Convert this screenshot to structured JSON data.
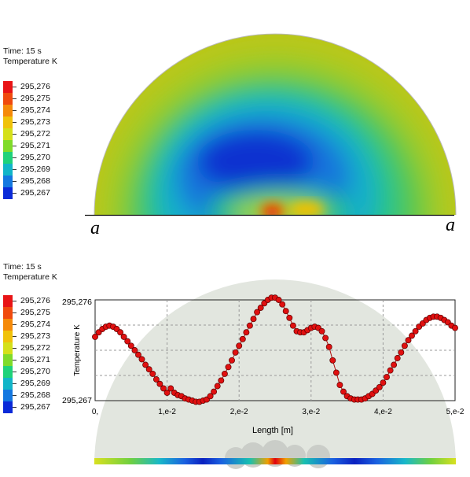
{
  "top_panel": {
    "time_label": "Time:",
    "time_value": "15 s",
    "quantity_label": "Temperature K",
    "legend_values": [
      "295,276",
      "295,275",
      "295,274",
      "295,273",
      "295,272",
      "295,271",
      "295,270",
      "295,269",
      "295,268",
      "295,267"
    ],
    "legend_colors": [
      "#e81416",
      "#f04a0e",
      "#f58a0a",
      "#f0c20a",
      "#d5e01a",
      "#7fdb2a",
      "#1fd27a",
      "#12b5c8",
      "#1478e0",
      "#0a2ad8"
    ],
    "marker_left": "a",
    "marker_right": "a"
  },
  "bottom_panel": {
    "time_label": "Time:",
    "time_value": "15 s",
    "quantity_label": "Temperature K",
    "legend_values": [
      "295,276",
      "295,275",
      "295,274",
      "295,273",
      "295,272",
      "295,271",
      "295,270",
      "295,269",
      "295,268",
      "295,267"
    ],
    "legend_colors": [
      "#e81416",
      "#f04a0e",
      "#f58a0a",
      "#f0c20a",
      "#d5e01a",
      "#7fdb2a",
      "#1fd27a",
      "#12b5c8",
      "#1478e0",
      "#0a2ad8"
    ]
  },
  "chart_data": {
    "type": "scatter",
    "ylabel": "Temperature K",
    "xlabel": "Length [m]",
    "xlim": [
      0,
      0.05
    ],
    "ylim": [
      295.267,
      295.276
    ],
    "x_tick_labels": [
      "0,",
      "1,e-2",
      "2,e-2",
      "3,e-2",
      "4,e-2",
      "5,e-2"
    ],
    "y_tick_labels": [
      "295,276",
      "295,267"
    ],
    "grid": true,
    "marker_color": "#e01010",
    "series": [
      {
        "x": [
          0.0,
          0.0005,
          0.001,
          0.0015,
          0.002,
          0.0025,
          0.003,
          0.0035,
          0.004,
          0.0045,
          0.005,
          0.0055,
          0.006,
          0.0065,
          0.007,
          0.0075,
          0.008,
          0.0085,
          0.009,
          0.0095,
          0.01,
          0.0105,
          0.011,
          0.0115,
          0.012,
          0.0125,
          0.013,
          0.0135,
          0.014,
          0.0145,
          0.015,
          0.0155,
          0.016,
          0.0165,
          0.017,
          0.0175,
          0.018,
          0.0185,
          0.019,
          0.0195,
          0.02,
          0.0205,
          0.021,
          0.0215,
          0.022,
          0.0225,
          0.023,
          0.0235,
          0.024,
          0.0245,
          0.025,
          0.0255,
          0.026,
          0.0265,
          0.027,
          0.0275,
          0.028,
          0.0285,
          0.029,
          0.0295,
          0.03,
          0.0305,
          0.031,
          0.0315,
          0.032,
          0.0325,
          0.033,
          0.0335,
          0.034,
          0.0345,
          0.035,
          0.0355,
          0.036,
          0.0365,
          0.037,
          0.0375,
          0.038,
          0.0385,
          0.039,
          0.0395,
          0.04,
          0.0405,
          0.041,
          0.0415,
          0.042,
          0.0425,
          0.043,
          0.0435,
          0.044,
          0.0445,
          0.045,
          0.0455,
          0.046,
          0.0465,
          0.047,
          0.0475,
          0.048,
          0.0485,
          0.049,
          0.0495,
          0.05
        ],
        "y": [
          295.2727,
          295.2731,
          295.2734,
          295.2736,
          295.2737,
          295.2736,
          295.2734,
          295.2731,
          295.2727,
          295.2723,
          295.2719,
          295.2715,
          295.2711,
          295.2707,
          295.2702,
          295.2698,
          295.2694,
          295.2689,
          295.2685,
          295.2681,
          295.2677,
          295.2681,
          295.2677,
          295.2675,
          295.2674,
          295.2672,
          295.2671,
          295.267,
          295.2669,
          295.2669,
          295.267,
          295.2671,
          295.2674,
          295.2678,
          295.2683,
          295.2688,
          295.2694,
          295.27,
          295.2706,
          295.2713,
          295.2719,
          295.2725,
          295.2731,
          295.2737,
          295.2743,
          295.2749,
          295.2753,
          295.2757,
          295.276,
          295.2762,
          295.2762,
          295.276,
          295.2756,
          295.275,
          295.2744,
          295.2737,
          295.2732,
          295.2731,
          295.2731,
          295.2733,
          295.2735,
          295.2736,
          295.2735,
          295.2732,
          295.2726,
          295.2718,
          295.2706,
          295.2695,
          295.2684,
          295.2678,
          295.2674,
          295.2672,
          295.2671,
          295.2671,
          295.2671,
          295.2672,
          295.2674,
          295.2676,
          295.2679,
          295.2682,
          295.2686,
          295.2691,
          295.2697,
          295.2702,
          295.2708,
          295.2713,
          295.2719,
          295.2724,
          295.2728,
          295.2732,
          295.2736,
          295.2739,
          295.2742,
          295.2744,
          295.2745,
          295.2745,
          295.2744,
          295.2742,
          295.274,
          295.2737,
          295.2735
        ]
      }
    ]
  }
}
